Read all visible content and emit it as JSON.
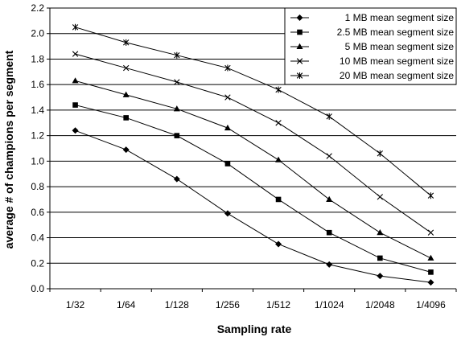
{
  "chart_data": {
    "type": "line",
    "title": "",
    "xlabel": "Sampling rate",
    "ylabel": "average # of champions per segment",
    "categories": [
      "1/32",
      "1/64",
      "1/128",
      "1/256",
      "1/512",
      "1/1024",
      "1/2048",
      "1/4096"
    ],
    "ylim": [
      0,
      2.2
    ],
    "yticks": [
      "0.0",
      "0.2",
      "0.4",
      "0.6",
      "0.8",
      "1.0",
      "1.2",
      "1.4",
      "1.6",
      "1.8",
      "2.0",
      "2.2"
    ],
    "grid": "horizontal",
    "legend_position": "top-right",
    "series": [
      {
        "name": "1 MB mean segment size",
        "marker": "diamond",
        "values": [
          1.24,
          1.09,
          0.86,
          0.59,
          0.35,
          0.19,
          0.1,
          0.05
        ]
      },
      {
        "name": "2.5 MB mean segment size",
        "marker": "square",
        "values": [
          1.44,
          1.34,
          1.2,
          0.98,
          0.7,
          0.44,
          0.24,
          0.13
        ]
      },
      {
        "name": "5 MB mean segment size",
        "marker": "triangle",
        "values": [
          1.63,
          1.52,
          1.41,
          1.26,
          1.01,
          0.7,
          0.44,
          0.24
        ]
      },
      {
        "name": "10 MB mean segment size",
        "marker": "x",
        "values": [
          1.84,
          1.73,
          1.62,
          1.5,
          1.3,
          1.04,
          0.72,
          0.44
        ]
      },
      {
        "name": "20 MB mean segment size",
        "marker": "star",
        "values": [
          2.05,
          1.93,
          1.83,
          1.73,
          1.56,
          1.35,
          1.06,
          0.73
        ]
      }
    ]
  }
}
